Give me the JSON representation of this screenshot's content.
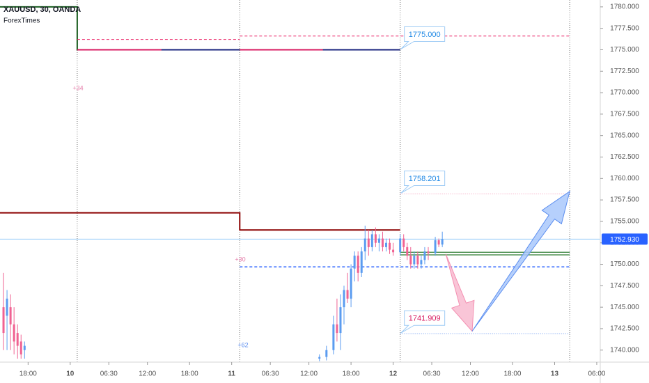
{
  "chart_data": {
    "type": "candlestick",
    "title": "XAUUSD, 30, OANDA",
    "subtitle": "ForexTimes",
    "up_color": "#5b9cf0",
    "down_color": "#f06292",
    "x": [
      1,
      2,
      3,
      4,
      5,
      6,
      7,
      91,
      93,
      95,
      96,
      97,
      98,
      99,
      100,
      101,
      102,
      103,
      104,
      105,
      106,
      107,
      108,
      109,
      110,
      111,
      112,
      114,
      115,
      116,
      117,
      118,
      119,
      120,
      121,
      122,
      124,
      125,
      126
    ],
    "open": [
      1745,
      1744,
      1745,
      1743,
      1742,
      1741,
      1740,
      1739,
      1739.2,
      1740,
      1743,
      1742,
      1745,
      1747,
      1746,
      1749.5,
      1751,
      1749,
      1751.5,
      1753,
      1752,
      1753.5,
      1752.5,
      1753,
      1752,
      1752.5,
      1751.7,
      1751.4,
      1753,
      1752,
      1751,
      1750,
      1751,
      1750,
      1750.5,
      1751.5,
      1751.3,
      1752.8,
      1752.3
    ],
    "high": [
      1749,
      1747,
      1746.5,
      1745,
      1743,
      1741.8,
      1741,
      1739.5,
      1740.5,
      1744,
      1746,
      1746.5,
      1747.5,
      1749,
      1750,
      1751.5,
      1751.5,
      1752,
      1754.5,
      1754,
      1754,
      1754.3,
      1753.5,
      1753.8,
      1753,
      1753,
      1752.5,
      1753.5,
      1753.5,
      1752.5,
      1752,
      1751.5,
      1751.5,
      1751,
      1752,
      1752,
      1753.2,
      1753,
      1753.8
    ],
    "low": [
      1740,
      1740,
      1740,
      1739.5,
      1739,
      1739,
      1739,
      1738.7,
      1738.8,
      1739.5,
      1741,
      1740,
      1743,
      1745.5,
      1745,
      1748,
      1748,
      1748.5,
      1750.5,
      1751,
      1751.5,
      1752,
      1751.5,
      1751.5,
      1751.5,
      1751.2,
      1751,
      1751,
      1751.5,
      1750.5,
      1749.5,
      1749.5,
      1749.5,
      1749.5,
      1750,
      1750.5,
      1751,
      1752,
      1752
    ],
    "close": [
      1742,
      1746,
      1743,
      1741,
      1740.5,
      1739.5,
      1740.5,
      1739.2,
      1740,
      1743,
      1742,
      1745,
      1747,
      1746,
      1749.5,
      1751,
      1749,
      1751.5,
      1753,
      1752,
      1753.5,
      1752.5,
      1753,
      1752,
      1752.5,
      1751.7,
      1751.4,
      1753,
      1752,
      1751,
      1750,
      1751,
      1750,
      1750.5,
      1751.5,
      1751.3,
      1752.8,
      1752.3,
      1752.93
    ],
    "xlim": [
      0,
      171
    ],
    "ylim": [
      1738.6,
      1780.8
    ],
    "yticks": [
      {
        "value": 1740,
        "label": "1740.000"
      },
      {
        "value": 1742.5,
        "label": "1742.500"
      },
      {
        "value": 1745,
        "label": "1745.000"
      },
      {
        "value": 1747.5,
        "label": "1747.500"
      },
      {
        "value": 1750,
        "label": "1750.000"
      },
      {
        "value": 1752.5,
        "label": "1752.500"
      },
      {
        "value": 1755,
        "label": "1755.000"
      },
      {
        "value": 1757.5,
        "label": "1757.500"
      },
      {
        "value": 1760,
        "label": "1760.000"
      },
      {
        "value": 1762.5,
        "label": "1762.500"
      },
      {
        "value": 1765,
        "label": "1765.000"
      },
      {
        "value": 1767.5,
        "label": "1767.500"
      },
      {
        "value": 1770,
        "label": "1770.000"
      },
      {
        "value": 1772.5,
        "label": "1772.500"
      },
      {
        "value": 1775,
        "label": "1775.000"
      },
      {
        "value": 1777.5,
        "label": "1777.500"
      },
      {
        "value": 1780,
        "label": "1780.000"
      }
    ],
    "xticks": [
      {
        "value": 8,
        "label": "18:00"
      },
      {
        "value": 20,
        "label": "10"
      },
      {
        "value": 31,
        "label": "06:30"
      },
      {
        "value": 42,
        "label": "12:00"
      },
      {
        "value": 54,
        "label": "18:00"
      },
      {
        "value": 66,
        "label": "11"
      },
      {
        "value": 77,
        "label": "06:30"
      },
      {
        "value": 88,
        "label": "12:00"
      },
      {
        "value": 100,
        "label": "18:00"
      },
      {
        "value": 112,
        "label": "12"
      },
      {
        "value": 123,
        "label": "06:30"
      },
      {
        "value": 134,
        "label": "12:00"
      },
      {
        "value": 146,
        "label": "18:00"
      },
      {
        "value": 158,
        "label": "13"
      },
      {
        "value": 170,
        "label": "06:00"
      }
    ],
    "session_breaks": [
      22,
      68.3,
      114,
      162.3
    ],
    "series": [
      {
        "color": "#1b5e20",
        "style": "solid",
        "width": 2,
        "x": [
          0,
          22,
          22,
          114
        ],
        "values": [
          1780,
          1780,
          1775,
          1775
        ]
      },
      {
        "color": "#8b0000",
        "style": "solid",
        "width": 2,
        "x": [
          0,
          68.3,
          68.3,
          114
        ],
        "values": [
          1756,
          1756,
          1754,
          1754
        ]
      },
      {
        "color": "#d81b60",
        "style": "solid",
        "width": 2,
        "x": [
          22,
          46,
          46,
          68.3,
          92
        ],
        "values": [
          1775,
          1775,
          null,
          1775,
          1775
        ]
      },
      {
        "color": "#1a237e",
        "style": "solid",
        "width": 2,
        "x": [
          46,
          68.3,
          68.3,
          92,
          114
        ],
        "values": [
          1775,
          1775,
          null,
          1775,
          1775
        ]
      },
      {
        "color": "#e91e63",
        "style": "dashed",
        "width": 1,
        "x": [
          22,
          68.3,
          68.3,
          68.3,
          162.3
        ],
        "values": [
          1776.2,
          1776.2,
          null,
          1776.6,
          1776.6
        ]
      },
      {
        "color": "#2962ff",
        "style": "dashed",
        "width": 1.5,
        "x": [
          68.3,
          162.3
        ],
        "values": [
          1749.7,
          1749.7
        ]
      },
      {
        "color": "#2e7d32",
        "style": "solid",
        "width": 1.2,
        "x": [
          114,
          162.3
        ],
        "values": [
          1751.4,
          1751.4
        ]
      },
      {
        "color": "#2e7d32",
        "style": "solid",
        "width": 1.2,
        "x": [
          114,
          162.3
        ],
        "values": [
          1751.1,
          1751.1
        ]
      },
      {
        "color": "#f48fb1",
        "style": "dotted",
        "width": 1,
        "x": [
          114,
          162.3
        ],
        "values": [
          1758.201,
          1758.201
        ]
      },
      {
        "color": "#5b8def",
        "style": "dotted",
        "width": 1,
        "x": [
          114,
          162.3
        ],
        "values": [
          1741.909,
          1741.909
        ]
      }
    ],
    "callouts": [
      {
        "value": 1775,
        "label": "1775.000",
        "color": "#1e88e5"
      },
      {
        "value": 1758.201,
        "label": "1758.201",
        "color": "#1e88e5"
      },
      {
        "value": 1741.909,
        "label": "1741.909",
        "color": "#d81b60"
      }
    ],
    "arrows": [
      {
        "color": "#f8bbd0",
        "stroke": "#f48fb1",
        "x": [
          127,
          134.5
        ],
        "values": [
          1751.2,
          1742.2
        ]
      },
      {
        "color": "#a9c8fb",
        "stroke": "#5b8def",
        "x": [
          134.5,
          162.3
        ],
        "values": [
          1742.2,
          1758.5
        ]
      }
    ],
    "last_price": {
      "value": 1752.93,
      "label": "1752.930",
      "color": "#2962ff"
    },
    "annotations": [
      {
        "text": "+34",
        "color": "#e57ba8"
      },
      {
        "text": "+30",
        "color": "#e57ba8"
      },
      {
        "text": "+62",
        "color": "#5b8def"
      }
    ]
  }
}
